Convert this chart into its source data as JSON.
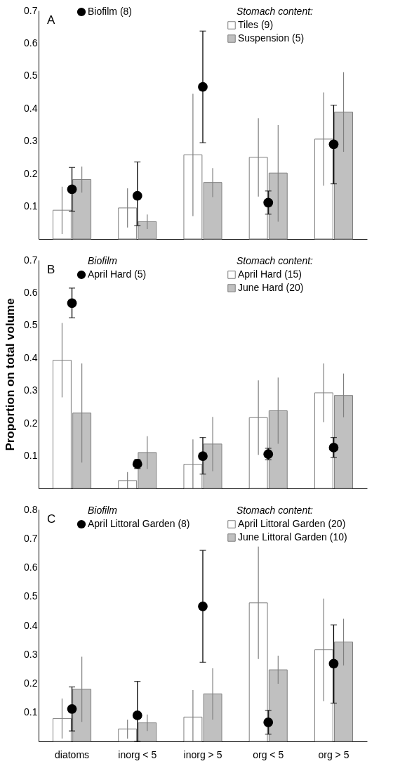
{
  "chart_data": [
    {
      "type": "bar",
      "title": "A",
      "categories": [
        null,
        null,
        null,
        null,
        null
      ],
      "ylim": [
        0,
        0.7
      ],
      "yticks": [
        0.1,
        0.2,
        0.3,
        0.4,
        0.5,
        0.6,
        0.7
      ],
      "tick_labels": "y",
      "grid": false,
      "legend": "top",
      "legend_title": "Stomach content:",
      "series": [
        {
          "name": "Tiles (9)",
          "color": "#ffffff",
          "values": [
            0.088,
            0.095,
            0.258,
            0.25,
            0.306
          ],
          "errors": [
            [
              0.015,
              0.16
            ],
            [
              0.035,
              0.155
            ],
            [
              0.07,
              0.445
            ],
            [
              0.13,
              0.37
            ],
            [
              0.163,
              0.449
            ]
          ]
        },
        {
          "name": "Suspension (5)",
          "color": "#c0c0c0",
          "values": [
            0.182,
            0.053,
            0.173,
            0.202,
            0.389
          ],
          "errors": [
            [
              0.142,
              0.222
            ],
            [
              0.03,
              0.075
            ],
            [
              0.128,
              0.217
            ],
            [
              0.053,
              0.349
            ],
            [
              0.267,
              0.511
            ]
          ]
        },
        {
          "name": "Biofilm (8)",
          "type": "scatter",
          "marker": "circle",
          "color": "#000000",
          "values": [
            0.152,
            0.132,
            0.466,
            0.111,
            0.29
          ],
          "errors": [
            [
              0.085,
              0.219
            ],
            [
              0.041,
              0.236
            ],
            [
              0.295,
              0.637
            ],
            [
              0.076,
              0.147
            ],
            [
              0.169,
              0.41
            ]
          ]
        }
      ]
    },
    {
      "type": "bar",
      "title": "B",
      "categories": [
        null,
        null,
        null,
        null,
        null
      ],
      "ylabel": "Proportion on total volume",
      "ylim": [
        0,
        0.7
      ],
      "yticks": [
        0.1,
        0.2,
        0.3,
        0.4,
        0.5,
        0.6,
        0.7
      ],
      "tick_labels": "y",
      "grid": false,
      "legend": "top",
      "legend_title": "Stomach content:",
      "annotations": [
        "Biofilm"
      ],
      "series": [
        {
          "name": "April Hard (15)",
          "color": "#ffffff",
          "values": [
            0.393,
            0.024,
            0.074,
            0.217,
            0.293
          ],
          "errors": [
            [
              0.279,
              0.507
            ],
            [
              0,
              0.05
            ],
            [
              0,
              0.15
            ],
            [
              0.103,
              0.331
            ],
            [
              0.203,
              0.383
            ]
          ]
        },
        {
          "name": "June Hard (20)",
          "color": "#c0c0c0",
          "values": [
            0.231,
            0.11,
            0.136,
            0.238,
            0.285
          ],
          "errors": [
            [
              0.079,
              0.383
            ],
            [
              0.06,
              0.16
            ],
            [
              0.053,
              0.219
            ],
            [
              0.137,
              0.34
            ],
            [
              0.218,
              0.352
            ]
          ]
        },
        {
          "name": "April Hard (5)",
          "type": "scatter",
          "marker": "circle",
          "color": "#000000",
          "values": [
            0.568,
            0.075,
            0.099,
            0.105,
            0.125
          ],
          "errors": [
            [
              0.523,
              0.614
            ],
            [
              0.061,
              0.089
            ],
            [
              0.044,
              0.156
            ],
            [
              0.088,
              0.123
            ],
            [
              0.095,
              0.156
            ]
          ]
        }
      ]
    },
    {
      "type": "bar",
      "title": "C",
      "categories": [
        "diatoms",
        "inorg < 5",
        "inorg > 5",
        "org < 5",
        "org > 5"
      ],
      "ylim": [
        0,
        0.8
      ],
      "yticks": [
        0.1,
        0.2,
        0.3,
        0.4,
        0.5,
        0.6,
        0.7,
        0.8
      ],
      "grid": false,
      "legend": "top",
      "legend_title": "Stomach content:",
      "annotations": [
        "Biofilm"
      ],
      "series": [
        {
          "name": "April Littoral Garden (20)",
          "color": "#ffffff",
          "values": [
            0.079,
            0.043,
            0.084,
            0.478,
            0.316
          ],
          "errors": [
            [
              0.01,
              0.148
            ],
            [
              0.01,
              0.075
            ],
            [
              0,
              0.177
            ],
            [
              0.284,
              0.672
            ],
            [
              0.139,
              0.493
            ]
          ]
        },
        {
          "name": "June Littoral Garden (10)",
          "color": "#c0c0c0",
          "values": [
            0.18,
            0.064,
            0.164,
            0.247,
            0.343
          ],
          "errors": [
            [
              0.067,
              0.292
            ],
            [
              0.036,
              0.093
            ],
            [
              0.075,
              0.252
            ],
            [
              0.199,
              0.296
            ],
            [
              0.262,
              0.423
            ]
          ]
        },
        {
          "name": "April Littoral Garden (8)",
          "type": "scatter",
          "marker": "circle",
          "color": "#000000",
          "values": [
            0.112,
            0.09,
            0.466,
            0.066,
            0.268
          ],
          "errors": [
            [
              0.036,
              0.188
            ],
            [
              0,
              0.207
            ],
            [
              0.273,
              0.659
            ],
            [
              0.025,
              0.107
            ],
            [
              0.132,
              0.402
            ]
          ]
        }
      ]
    }
  ]
}
